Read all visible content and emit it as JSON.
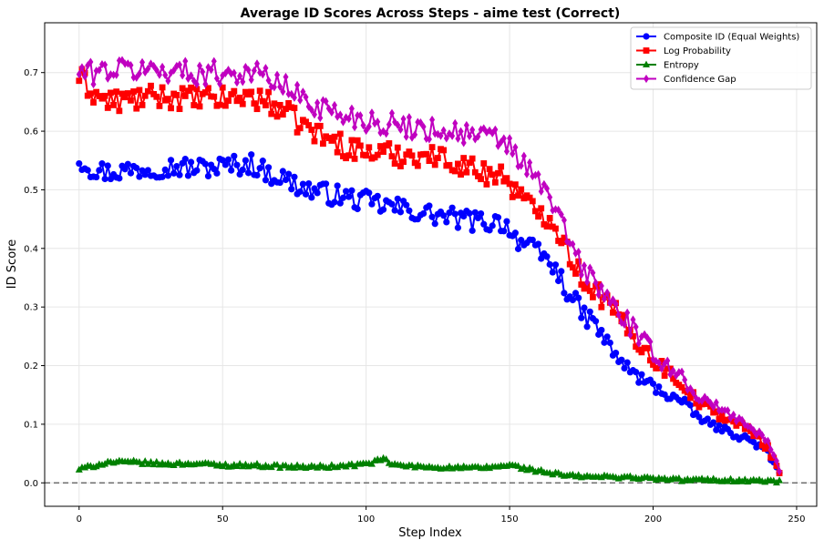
{
  "chart_data": {
    "type": "line",
    "title": "Average ID Scores Across Steps - aime test (Correct)",
    "xlabel": "Step Index",
    "ylabel": "ID Score",
    "xlim": [
      -12,
      257
    ],
    "ylim": [
      -0.04,
      0.785
    ],
    "xticks": [
      0,
      50,
      100,
      150,
      200,
      250
    ],
    "yticks": [
      0.0,
      0.1,
      0.2,
      0.3,
      0.4,
      0.5,
      0.6,
      0.7
    ],
    "grid": true,
    "legend_position": "top-right",
    "reference_line": {
      "y": 0.0,
      "style": "dashed"
    },
    "series": [
      {
        "name": "Composite ID (Equal Weights)",
        "color": "#0000ff",
        "marker": "circle",
        "anchors": [
          [
            0,
            0.553
          ],
          [
            5,
            0.535
          ],
          [
            10,
            0.53
          ],
          [
            20,
            0.535
          ],
          [
            30,
            0.54
          ],
          [
            40,
            0.537
          ],
          [
            50,
            0.54
          ],
          [
            60,
            0.545
          ],
          [
            65,
            0.53
          ],
          [
            70,
            0.522
          ],
          [
            75,
            0.51
          ],
          [
            80,
            0.5
          ],
          [
            90,
            0.49
          ],
          [
            100,
            0.48
          ],
          [
            110,
            0.47
          ],
          [
            120,
            0.46
          ],
          [
            130,
            0.452
          ],
          [
            140,
            0.445
          ],
          [
            148,
            0.445
          ],
          [
            152,
            0.42
          ],
          [
            157,
            0.4
          ],
          [
            162,
            0.385
          ],
          [
            165,
            0.37
          ],
          [
            170,
            0.33
          ],
          [
            175,
            0.29
          ],
          [
            180,
            0.27
          ],
          [
            185,
            0.23
          ],
          [
            190,
            0.2
          ],
          [
            195,
            0.18
          ],
          [
            200,
            0.165
          ],
          [
            205,
            0.15
          ],
          [
            210,
            0.14
          ],
          [
            215,
            0.115
          ],
          [
            220,
            0.1
          ],
          [
            225,
            0.09
          ],
          [
            230,
            0.08
          ],
          [
            235,
            0.07
          ],
          [
            240,
            0.05
          ],
          [
            244,
            0.015
          ]
        ],
        "amplitude": 0.018
      },
      {
        "name": "Log Probability",
        "color": "#ff0000",
        "marker": "square",
        "anchors": [
          [
            0,
            0.693
          ],
          [
            5,
            0.665
          ],
          [
            10,
            0.65
          ],
          [
            20,
            0.655
          ],
          [
            30,
            0.66
          ],
          [
            40,
            0.655
          ],
          [
            50,
            0.655
          ],
          [
            60,
            0.66
          ],
          [
            65,
            0.65
          ],
          [
            70,
            0.64
          ],
          [
            75,
            0.62
          ],
          [
            80,
            0.605
          ],
          [
            85,
            0.59
          ],
          [
            90,
            0.58
          ],
          [
            95,
            0.57
          ],
          [
            100,
            0.565
          ],
          [
            110,
            0.56
          ],
          [
            120,
            0.56
          ],
          [
            130,
            0.55
          ],
          [
            140,
            0.53
          ],
          [
            148,
            0.525
          ],
          [
            152,
            0.5
          ],
          [
            157,
            0.47
          ],
          [
            162,
            0.46
          ],
          [
            165,
            0.45
          ],
          [
            170,
            0.4
          ],
          [
            175,
            0.35
          ],
          [
            180,
            0.33
          ],
          [
            185,
            0.3
          ],
          [
            190,
            0.27
          ],
          [
            195,
            0.24
          ],
          [
            200,
            0.21
          ],
          [
            205,
            0.19
          ],
          [
            210,
            0.17
          ],
          [
            215,
            0.14
          ],
          [
            220,
            0.125
          ],
          [
            225,
            0.11
          ],
          [
            230,
            0.1
          ],
          [
            235,
            0.085
          ],
          [
            240,
            0.06
          ],
          [
            244,
            0.02
          ]
        ],
        "amplitude": 0.02
      },
      {
        "name": "Entropy",
        "color": "#008000",
        "marker": "triangle",
        "anchors": [
          [
            0,
            0.023
          ],
          [
            10,
            0.035
          ],
          [
            20,
            0.035
          ],
          [
            30,
            0.032
          ],
          [
            40,
            0.033
          ],
          [
            50,
            0.03
          ],
          [
            60,
            0.03
          ],
          [
            70,
            0.028
          ],
          [
            80,
            0.027
          ],
          [
            90,
            0.028
          ],
          [
            100,
            0.032
          ],
          [
            106,
            0.04
          ],
          [
            110,
            0.03
          ],
          [
            120,
            0.027
          ],
          [
            130,
            0.026
          ],
          [
            140,
            0.025
          ],
          [
            150,
            0.03
          ],
          [
            160,
            0.02
          ],
          [
            170,
            0.012
          ],
          [
            180,
            0.01
          ],
          [
            190,
            0.01
          ],
          [
            200,
            0.007
          ],
          [
            210,
            0.005
          ],
          [
            220,
            0.005
          ],
          [
            230,
            0.004
          ],
          [
            240,
            0.003
          ],
          [
            244,
            0.002
          ]
        ],
        "amplitude": 0.008
      },
      {
        "name": "Confidence Gap",
        "color": "#c000c0",
        "marker": "diamond",
        "anchors": [
          [
            0,
            0.7
          ],
          [
            5,
            0.7
          ],
          [
            10,
            0.705
          ],
          [
            20,
            0.705
          ],
          [
            30,
            0.705
          ],
          [
            40,
            0.7
          ],
          [
            50,
            0.7
          ],
          [
            60,
            0.7
          ],
          [
            65,
            0.695
          ],
          [
            70,
            0.68
          ],
          [
            75,
            0.665
          ],
          [
            80,
            0.65
          ],
          [
            90,
            0.63
          ],
          [
            100,
            0.62
          ],
          [
            110,
            0.61
          ],
          [
            120,
            0.605
          ],
          [
            130,
            0.6
          ],
          [
            140,
            0.59
          ],
          [
            148,
            0.585
          ],
          [
            152,
            0.56
          ],
          [
            157,
            0.53
          ],
          [
            162,
            0.5
          ],
          [
            165,
            0.48
          ],
          [
            170,
            0.42
          ],
          [
            175,
            0.37
          ],
          [
            180,
            0.34
          ],
          [
            185,
            0.31
          ],
          [
            190,
            0.28
          ],
          [
            195,
            0.25
          ],
          [
            200,
            0.22
          ],
          [
            205,
            0.2
          ],
          [
            210,
            0.18
          ],
          [
            215,
            0.15
          ],
          [
            220,
            0.135
          ],
          [
            225,
            0.12
          ],
          [
            230,
            0.11
          ],
          [
            235,
            0.09
          ],
          [
            240,
            0.07
          ],
          [
            244,
            0.02
          ]
        ],
        "amplitude": 0.02
      }
    ],
    "step_count": 245
  }
}
